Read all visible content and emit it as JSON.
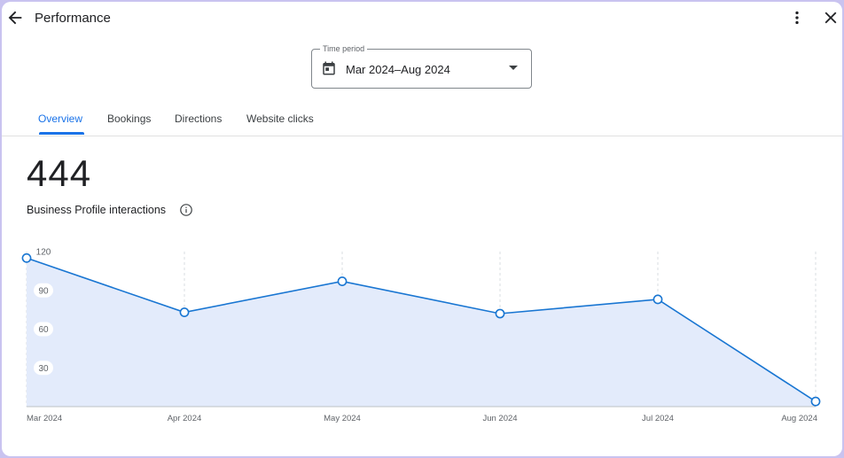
{
  "header": {
    "title": "Performance",
    "icons": {
      "back": "arrow-back-icon",
      "more": "more-vert-icon",
      "close": "close-icon"
    }
  },
  "period": {
    "label": "Time period",
    "value": "Mar 2024–Aug 2024",
    "icon": "calendar-icon"
  },
  "tabs": [
    {
      "label": "Overview",
      "active": true
    },
    {
      "label": "Bookings",
      "active": false
    },
    {
      "label": "Directions",
      "active": false
    },
    {
      "label": "Website clicks",
      "active": false
    }
  ],
  "metric": {
    "value": "444",
    "label": "Business Profile interactions",
    "icon": "info-icon"
  },
  "colors": {
    "accent": "#1a73e8",
    "line": "#1976d2",
    "area": "#e3ebfb"
  },
  "chart_data": {
    "type": "area",
    "categories": [
      "Mar 2024",
      "Apr 2024",
      "May 2024",
      "Jun 2024",
      "Jul 2024",
      "Aug 2024"
    ],
    "values": [
      115,
      73,
      97,
      72,
      83,
      4
    ],
    "yticks": [
      30,
      60,
      90,
      120
    ],
    "ylim": [
      0,
      120
    ],
    "grid": true,
    "legend": "none"
  }
}
